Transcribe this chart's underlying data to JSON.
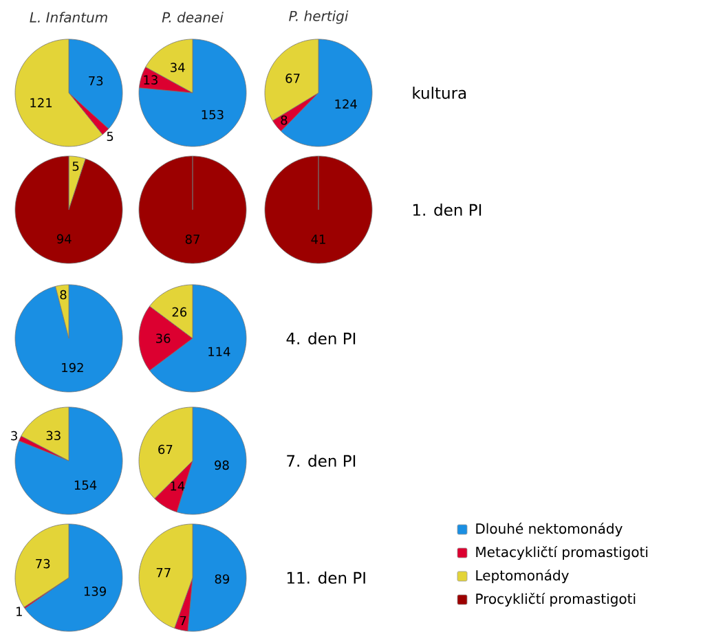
{
  "chart_data": [
    {
      "type": "pie",
      "title": "L. Infantum",
      "categories": [
        null,
        null,
        null,
        null
      ],
      "values": [
        73,
        5,
        121,
        0
      ],
      "colors": [
        "#1a8fe3",
        "#dc0030",
        "#e3d438",
        "#9c0000"
      ],
      "value_labels": [
        "73",
        "5",
        "121",
        null
      ]
    },
    {
      "type": "pie",
      "title": "P. deanei",
      "categories": [
        null,
        null,
        null,
        null
      ],
      "values": [
        153,
        13,
        34,
        0
      ],
      "colors": [
        "#1a8fe3",
        "#dc0030",
        "#e3d438",
        "#9c0000"
      ],
      "value_labels": [
        "153",
        "13",
        "34",
        null
      ]
    },
    {
      "type": "pie",
      "title": "P. hertigi",
      "categories": [
        null,
        null,
        null,
        null
      ],
      "values": [
        124,
        8,
        67,
        0
      ],
      "colors": [
        "#1a8fe3",
        "#dc0030",
        "#e3d438",
        "#9c0000"
      ],
      "value_labels": [
        "124",
        "8",
        "67",
        null
      ],
      "annotations": [
        "kultura"
      ]
    },
    {
      "type": "pie",
      "categories": [
        null,
        null,
        null,
        null
      ],
      "values": [
        0,
        0,
        5,
        94
      ],
      "colors": [
        "#1a8fe3",
        "#dc0030",
        "#e3d438",
        "#9c0000"
      ],
      "value_labels": [
        null,
        null,
        "5",
        "94"
      ]
    },
    {
      "type": "pie",
      "categories": [
        null,
        null,
        null,
        null
      ],
      "values": [
        0,
        0,
        0,
        87
      ],
      "colors": [
        "#1a8fe3",
        "#dc0030",
        "#e3d438",
        "#9c0000"
      ],
      "value_labels": [
        null,
        null,
        null,
        "87"
      ]
    },
    {
      "type": "pie",
      "categories": [
        null,
        null,
        null,
        null
      ],
      "values": [
        0,
        0,
        0,
        41
      ],
      "colors": [
        "#1a8fe3",
        "#dc0030",
        "#e3d438",
        "#9c0000"
      ],
      "value_labels": [
        null,
        null,
        null,
        "41"
      ],
      "annotations": [
        "1. den PI"
      ]
    },
    {
      "type": "pie",
      "categories": [
        null,
        null,
        null,
        null
      ],
      "values": [
        192,
        0,
        8,
        0
      ],
      "colors": [
        "#1a8fe3",
        "#dc0030",
        "#e3d438",
        "#9c0000"
      ],
      "value_labels": [
        "192",
        null,
        "8",
        null
      ]
    },
    {
      "type": "pie",
      "categories": [
        null,
        null,
        null,
        null
      ],
      "values": [
        114,
        36,
        26,
        0
      ],
      "colors": [
        "#1a8fe3",
        "#dc0030",
        "#e3d438",
        "#9c0000"
      ],
      "value_labels": [
        "114",
        "36",
        "26",
        null
      ],
      "annotations": [
        "4. den PI"
      ]
    },
    {
      "type": "pie",
      "categories": [
        null,
        null,
        null,
        null
      ],
      "values": [
        154,
        3,
        33,
        0
      ],
      "colors": [
        "#1a8fe3",
        "#dc0030",
        "#e3d438",
        "#9c0000"
      ],
      "value_labels": [
        "154",
        "3",
        "33",
        null
      ]
    },
    {
      "type": "pie",
      "categories": [
        null,
        null,
        null,
        null
      ],
      "values": [
        98,
        14,
        67,
        0
      ],
      "colors": [
        "#1a8fe3",
        "#dc0030",
        "#e3d438",
        "#9c0000"
      ],
      "value_labels": [
        "98",
        "14",
        "67",
        null
      ],
      "annotations": [
        "7. den PI"
      ]
    },
    {
      "type": "pie",
      "categories": [
        null,
        null,
        null,
        null
      ],
      "values": [
        139,
        1,
        73,
        0
      ],
      "colors": [
        "#1a8fe3",
        "#dc0030",
        "#e3d438",
        "#9c0000"
      ],
      "value_labels": [
        "139",
        "1",
        "73",
        null
      ]
    },
    {
      "type": "pie",
      "categories": [
        "Dlouhé nektomonády",
        "Metacykličtí promastigoti",
        "Leptomonády",
        "Procykličtí promastigoti"
      ],
      "values": [
        89,
        7,
        77,
        0
      ],
      "colors": [
        "#1a8fe3",
        "#dc0030",
        "#e3d438",
        "#9c0000"
      ],
      "value_labels": [
        "89",
        "7",
        "77",
        null
      ],
      "annotations": [
        "11. den PI"
      ],
      "legend": "right"
    }
  ]
}
